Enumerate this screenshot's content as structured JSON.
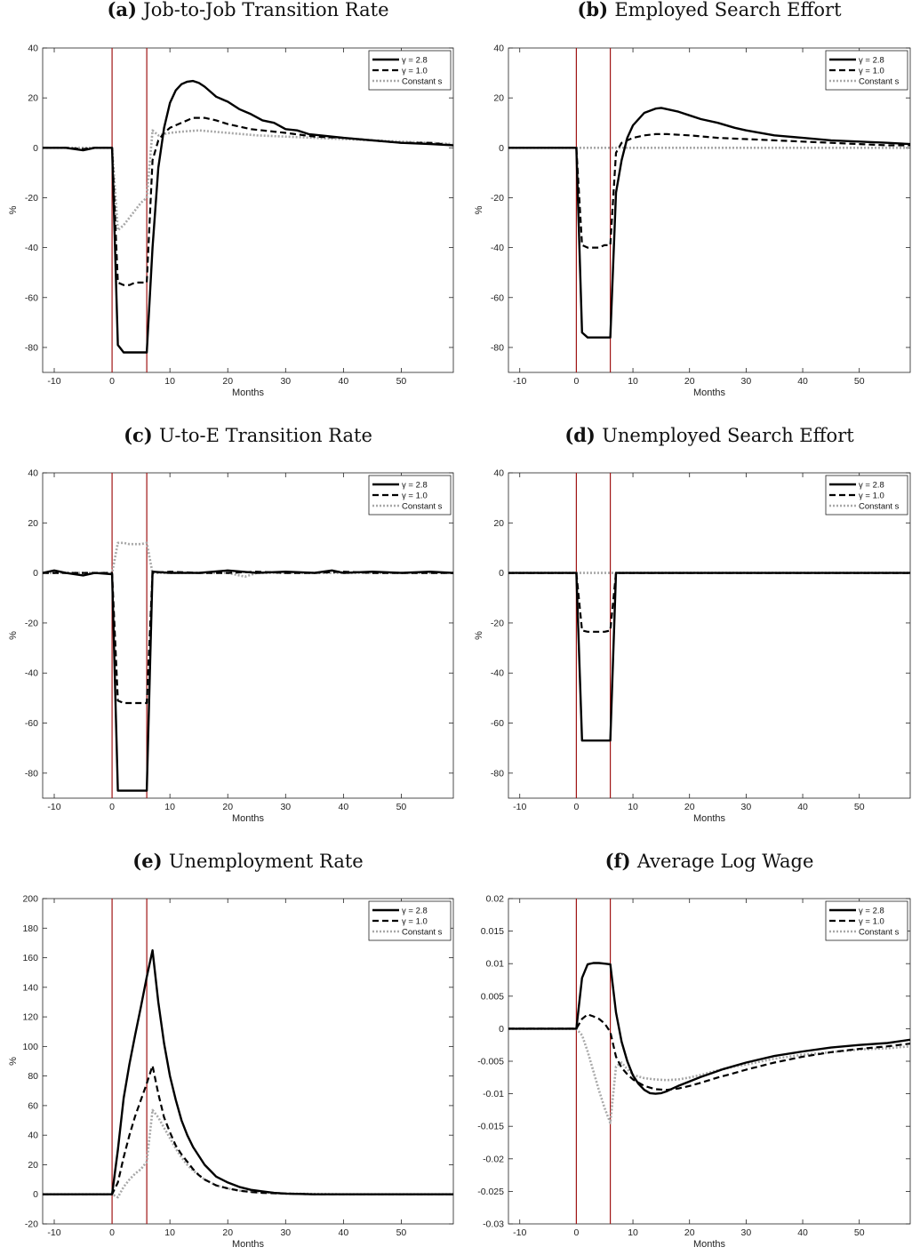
{
  "chart_data": [
    {
      "id": "a",
      "type": "line",
      "label": "(a)",
      "title": "Job-to-Job Transition Rate",
      "xlabel": "Months",
      "ylabel": "%",
      "xlim": [
        -12,
        59
      ],
      "ylim": [
        -90,
        40
      ],
      "xticks": [
        -10,
        0,
        10,
        20,
        30,
        40,
        50
      ],
      "yticks": [
        -80,
        -60,
        -40,
        -20,
        0,
        20,
        40
      ],
      "vlines": [
        0,
        6
      ],
      "legend_position": "top-right",
      "series": [
        {
          "name": "γ = 2.8",
          "style": "solid",
          "color": "#000000",
          "x": [
            -12,
            -8,
            -5,
            -3,
            0,
            1,
            2,
            3,
            4,
            5,
            6,
            7,
            8,
            9,
            10,
            11,
            12,
            13,
            14,
            15,
            16,
            17,
            18,
            19,
            20,
            22,
            24,
            26,
            28,
            30,
            32,
            34,
            36,
            38,
            40,
            45,
            50,
            55,
            59
          ],
          "y": [
            0,
            0,
            -1,
            0,
            0,
            -79,
            -82,
            -82,
            -82,
            -82,
            -82,
            -40,
            -8,
            8,
            18,
            23,
            25.5,
            26.5,
            26.8,
            26,
            24.5,
            22.5,
            20.5,
            19.5,
            18.5,
            15.5,
            13.5,
            11,
            10,
            7.5,
            7,
            5.5,
            5,
            4.5,
            4,
            3,
            2,
            1.5,
            1
          ]
        },
        {
          "name": "γ = 1.0",
          "style": "dashed",
          "color": "#000000",
          "x": [
            -12,
            -8,
            -5,
            -3,
            0,
            1,
            2,
            3,
            4,
            5,
            6,
            7,
            8,
            9,
            10,
            12,
            14,
            16,
            18,
            20,
            22,
            24,
            26,
            28,
            30,
            35,
            40,
            45,
            50,
            55,
            59
          ],
          "y": [
            0,
            0,
            -0.5,
            0,
            0,
            -54,
            -55,
            -55,
            -54,
            -54,
            -54,
            -5,
            3,
            6,
            8,
            10,
            12,
            12,
            11,
            9.5,
            8.5,
            7.5,
            7,
            6.5,
            6,
            4.5,
            4,
            3,
            2,
            2,
            1
          ]
        },
        {
          "name": "Constant s",
          "style": "dotted",
          "color": "#a8a8a8",
          "x": [
            -12,
            -5,
            0,
            1,
            2,
            3,
            4,
            5,
            6,
            7,
            8,
            10,
            12,
            15,
            20,
            25,
            30,
            35,
            40,
            45,
            50,
            55,
            59
          ],
          "y": [
            0,
            0,
            0,
            -33,
            -31,
            -28,
            -25,
            -22,
            -20,
            7,
            5,
            6,
            6.5,
            7,
            6,
            5,
            4.5,
            4,
            3.5,
            3,
            2.5,
            2,
            1.5
          ]
        }
      ]
    },
    {
      "id": "b",
      "type": "line",
      "label": "(b)",
      "title": "Employed Search Effort",
      "xlabel": "Months",
      "ylabel": "%",
      "xlim": [
        -12,
        59
      ],
      "ylim": [
        -90,
        40
      ],
      "xticks": [
        -10,
        0,
        10,
        20,
        30,
        40,
        50
      ],
      "yticks": [
        -80,
        -60,
        -40,
        -20,
        0,
        20,
        40
      ],
      "vlines": [
        0,
        6
      ],
      "legend_position": "top-right",
      "series": [
        {
          "name": "γ = 2.8",
          "style": "solid",
          "color": "#000000",
          "x": [
            -12,
            0,
            1,
            2,
            3,
            4,
            5,
            6,
            7,
            8,
            9,
            10,
            12,
            14,
            15,
            16,
            18,
            20,
            22,
            25,
            28,
            30,
            35,
            40,
            45,
            50,
            55,
            59
          ],
          "y": [
            0,
            0,
            -74,
            -76,
            -76,
            -76,
            -76,
            -76,
            -18,
            -5,
            4,
            9,
            14,
            15.7,
            16,
            15.5,
            14.5,
            13,
            11.5,
            10,
            8,
            7,
            5,
            4,
            3,
            2.5,
            2,
            1.5
          ]
        },
        {
          "name": "γ = 1.0",
          "style": "dashed",
          "color": "#000000",
          "x": [
            -12,
            0,
            1,
            2,
            3,
            4,
            5,
            6,
            7,
            8,
            10,
            12,
            14,
            16,
            20,
            25,
            30,
            35,
            40,
            45,
            50,
            55,
            59
          ],
          "y": [
            0,
            0,
            -39,
            -40,
            -40,
            -40,
            -39,
            -39,
            -2,
            2,
            4,
            5,
            5.5,
            5.5,
            5,
            4,
            3.5,
            3,
            2.5,
            2,
            1.5,
            1,
            1
          ]
        },
        {
          "name": "Constant s",
          "style": "dotted",
          "color": "#a8a8a8",
          "x": [
            -12,
            59
          ],
          "y": [
            0,
            0
          ]
        }
      ]
    },
    {
      "id": "c",
      "type": "line",
      "label": "(c)",
      "title": "U-to-E Transition Rate",
      "xlabel": "Months",
      "ylabel": "%",
      "xlim": [
        -12,
        59
      ],
      "ylim": [
        -90,
        40
      ],
      "xticks": [
        -10,
        0,
        10,
        20,
        30,
        40,
        50
      ],
      "yticks": [
        -80,
        -60,
        -40,
        -20,
        0,
        20,
        40
      ],
      "vlines": [
        0,
        6
      ],
      "legend_position": "top-right",
      "series": [
        {
          "name": "γ = 2.8",
          "style": "solid",
          "color": "#000000",
          "x": [
            -12,
            -10,
            -8,
            -5,
            -3,
            0,
            1,
            2,
            3,
            4,
            5,
            6,
            7,
            10,
            15,
            20,
            25,
            30,
            35,
            38,
            40,
            45,
            50,
            55,
            59
          ],
          "y": [
            0,
            1,
            0,
            -1,
            0,
            -0.5,
            -87,
            -87,
            -87,
            -87,
            -87,
            -87,
            0.5,
            0,
            0,
            1,
            0,
            0.5,
            0,
            1,
            0,
            0.5,
            0,
            0.5,
            0
          ]
        },
        {
          "name": "γ = 1.0",
          "style": "dashed",
          "color": "#000000",
          "x": [
            -12,
            -8,
            -5,
            0,
            1,
            2,
            3,
            4,
            5,
            6,
            7,
            10,
            15,
            20,
            25,
            30,
            35,
            40,
            45,
            50,
            55,
            59
          ],
          "y": [
            0,
            0,
            0,
            0,
            -51,
            -52,
            -52,
            -52,
            -52,
            -52,
            0,
            0.5,
            0,
            0,
            0.5,
            0,
            0,
            0.5,
            0,
            0,
            0,
            0
          ]
        },
        {
          "name": "Constant s",
          "style": "dotted",
          "color": "#a8a8a8",
          "x": [
            -12,
            -5,
            0,
            1,
            2,
            3,
            4,
            5,
            6,
            7,
            8,
            10,
            15,
            20,
            23,
            25,
            30,
            40,
            50,
            59
          ],
          "y": [
            0,
            0,
            0,
            12,
            12,
            11.5,
            11.5,
            11.5,
            12,
            0,
            0,
            0,
            0,
            0,
            -1.5,
            0,
            0,
            0,
            0,
            0
          ]
        }
      ]
    },
    {
      "id": "d",
      "type": "line",
      "label": "(d)",
      "title": "Unemployed Search Effort",
      "xlabel": "Months",
      "ylabel": "%",
      "xlim": [
        -12,
        59
      ],
      "ylim": [
        -90,
        40
      ],
      "xticks": [
        -10,
        0,
        10,
        20,
        30,
        40,
        50
      ],
      "yticks": [
        -80,
        -60,
        -40,
        -20,
        0,
        20,
        40
      ],
      "vlines": [
        0,
        6
      ],
      "legend_position": "top-right",
      "series": [
        {
          "name": "γ = 2.8",
          "style": "solid",
          "color": "#000000",
          "x": [
            -12,
            0,
            1,
            2,
            3,
            4,
            5,
            6,
            7,
            59
          ],
          "y": [
            0,
            0,
            -67,
            -67,
            -67,
            -67,
            -67,
            -67,
            0,
            0
          ]
        },
        {
          "name": "γ = 1.0",
          "style": "dashed",
          "color": "#000000",
          "x": [
            -12,
            0,
            1,
            2,
            3,
            4,
            5,
            6,
            7,
            59
          ],
          "y": [
            0,
            0,
            -23,
            -23.5,
            -23.5,
            -23.5,
            -23.5,
            -23,
            0,
            0
          ]
        },
        {
          "name": "Constant s",
          "style": "dotted",
          "color": "#a8a8a8",
          "x": [
            -12,
            59
          ],
          "y": [
            0,
            0
          ]
        }
      ]
    },
    {
      "id": "e",
      "type": "line",
      "label": "(e)",
      "title": "Unemployment Rate",
      "xlabel": "Months",
      "ylabel": "%",
      "xlim": [
        -12,
        59
      ],
      "ylim": [
        -20,
        200
      ],
      "xticks": [
        -10,
        0,
        10,
        20,
        30,
        40,
        50
      ],
      "yticks": [
        -20,
        0,
        20,
        40,
        60,
        80,
        100,
        120,
        140,
        160,
        180,
        200
      ],
      "vlines": [
        0,
        6
      ],
      "legend_position": "top-right",
      "series": [
        {
          "name": "γ = 2.8",
          "style": "solid",
          "color": "#000000",
          "x": [
            -12,
            0,
            1,
            2,
            3,
            4,
            5,
            6,
            7,
            8,
            9,
            10,
            11,
            12,
            13,
            14,
            15,
            16,
            17,
            18,
            20,
            22,
            24,
            26,
            28,
            30,
            35,
            40,
            45,
            50,
            59
          ],
          "y": [
            0,
            0,
            30,
            65,
            88,
            108,
            127,
            147,
            165,
            130,
            102,
            80,
            64,
            50,
            40,
            32,
            26,
            20,
            16,
            12,
            8,
            5,
            3,
            2,
            1,
            0.5,
            0,
            0,
            0,
            0,
            0
          ]
        },
        {
          "name": "γ = 1.0",
          "style": "dashed",
          "color": "#000000",
          "x": [
            -12,
            0,
            1,
            2,
            3,
            4,
            5,
            6,
            7,
            8,
            9,
            10,
            11,
            12,
            13,
            14,
            15,
            16,
            18,
            20,
            22,
            24,
            26,
            30,
            35,
            40,
            59
          ],
          "y": [
            0,
            0,
            8,
            25,
            40,
            53,
            64,
            75,
            87,
            68,
            52,
            42,
            33,
            27,
            22,
            17,
            13,
            10,
            6,
            4,
            2.5,
            1.5,
            1,
            0.5,
            0,
            0,
            0
          ]
        },
        {
          "name": "Constant s",
          "style": "dotted",
          "color": "#a8a8a8",
          "x": [
            -12,
            0,
            1,
            2,
            3,
            4,
            5,
            6,
            7,
            8,
            9,
            10,
            11,
            12,
            13,
            14,
            15,
            16,
            18,
            20,
            22,
            25,
            30,
            40,
            59
          ],
          "y": [
            0,
            0,
            -2,
            5,
            10,
            14,
            17,
            22,
            57,
            52,
            45,
            38,
            31,
            25,
            20,
            16,
            13,
            10,
            6,
            4,
            2.5,
            1.5,
            0.5,
            0,
            0
          ]
        }
      ]
    },
    {
      "id": "f",
      "type": "line",
      "label": "(f)",
      "title": "Average Log Wage",
      "xlabel": "Months",
      "ylabel": "",
      "xlim": [
        -12,
        59
      ],
      "ylim": [
        -0.03,
        0.02
      ],
      "xticks": [
        -10,
        0,
        10,
        20,
        30,
        40,
        50
      ],
      "yticks": [
        -0.03,
        -0.025,
        -0.02,
        -0.015,
        -0.01,
        -0.005,
        0,
        0.005,
        0.01,
        0.015,
        0.02
      ],
      "vlines": [
        0,
        6
      ],
      "legend_position": "top-right",
      "series": [
        {
          "name": "γ = 2.8",
          "style": "solid",
          "color": "#000000",
          "x": [
            -12,
            0,
            1,
            2,
            3,
            4,
            5,
            6,
            7,
            8,
            9,
            10,
            11,
            12,
            13,
            14,
            15,
            16,
            17,
            18,
            20,
            22,
            24,
            26,
            28,
            30,
            32,
            35,
            40,
            45,
            50,
            55,
            59
          ],
          "y": [
            0,
            0,
            0.0078,
            0.0099,
            0.0101,
            0.0101,
            0.01,
            0.0099,
            0.0025,
            -0.002,
            -0.005,
            -0.0072,
            -0.0085,
            -0.0094,
            -0.0099,
            -0.01,
            -0.0099,
            -0.0096,
            -0.0092,
            -0.0088,
            -0.0081,
            -0.0074,
            -0.0068,
            -0.0062,
            -0.0057,
            -0.0052,
            -0.0048,
            -0.0042,
            -0.0035,
            -0.0029,
            -0.0025,
            -0.0022,
            -0.0017
          ]
        },
        {
          "name": "γ = 1.0",
          "style": "dashed",
          "color": "#000000",
          "x": [
            -12,
            0,
            1,
            2,
            3,
            4,
            5,
            6,
            7,
            8,
            9,
            10,
            12,
            14,
            16,
            18,
            20,
            22,
            25,
            28,
            30,
            35,
            40,
            45,
            50,
            55,
            59
          ],
          "y": [
            0,
            0,
            0.0015,
            0.0022,
            0.0019,
            0.0015,
            0.0008,
            -0.0005,
            -0.0043,
            -0.006,
            -0.007,
            -0.0078,
            -0.0088,
            -0.0093,
            -0.0094,
            -0.0092,
            -0.0088,
            -0.0083,
            -0.0075,
            -0.0068,
            -0.0063,
            -0.0052,
            -0.0043,
            -0.0036,
            -0.0031,
            -0.0027,
            -0.0023
          ]
        },
        {
          "name": "Constant s",
          "style": "dotted",
          "color": "#a8a8a8",
          "x": [
            -12,
            0,
            1,
            2,
            3,
            4,
            5,
            6,
            7,
            8,
            9,
            10,
            12,
            14,
            16,
            18,
            20,
            22,
            25,
            28,
            30,
            35,
            40,
            45,
            50,
            55,
            59
          ],
          "y": [
            0,
            0,
            -0.001,
            -0.0035,
            -0.0065,
            -0.0095,
            -0.0122,
            -0.0145,
            -0.0058,
            -0.0052,
            -0.0062,
            -0.0071,
            -0.0076,
            -0.0078,
            -0.0079,
            -0.0078,
            -0.0075,
            -0.0071,
            -0.0064,
            -0.0058,
            -0.0055,
            -0.0046,
            -0.004,
            -0.0036,
            -0.0032,
            -0.003,
            -0.0027
          ]
        }
      ]
    }
  ]
}
